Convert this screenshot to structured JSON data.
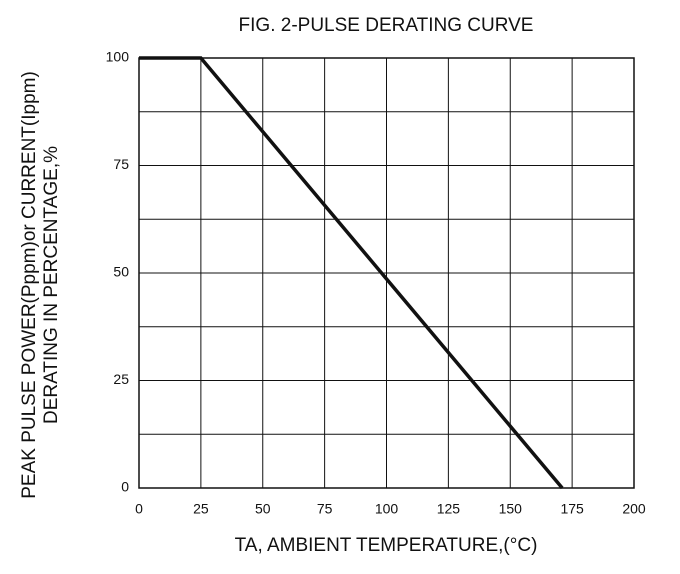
{
  "chart_data": {
    "type": "line",
    "title": "FIG. 2-PULSE DERATING CURVE",
    "xlabel": "TA, AMBIENT TEMPERATURE,(°C)",
    "ylabel": [
      "PEAK PULSE POWER(Pppm)or CURRENT(Ippm)",
      "DERATING IN PERCENTAGE,%"
    ],
    "x": [
      0,
      25,
      171
    ],
    "series": [
      {
        "color": "#111111",
        "values": [
          100,
          100,
          0
        ]
      }
    ],
    "xlim": [
      0,
      200
    ],
    "xticks": [
      0,
      25,
      50,
      75,
      100,
      125,
      150,
      175,
      200
    ],
    "ylim": [
      0,
      100
    ],
    "yticks": [
      0,
      25,
      50,
      75,
      100
    ],
    "yminor": [
      12.5,
      37.5,
      62.5,
      87.5
    ],
    "grid": true
  }
}
